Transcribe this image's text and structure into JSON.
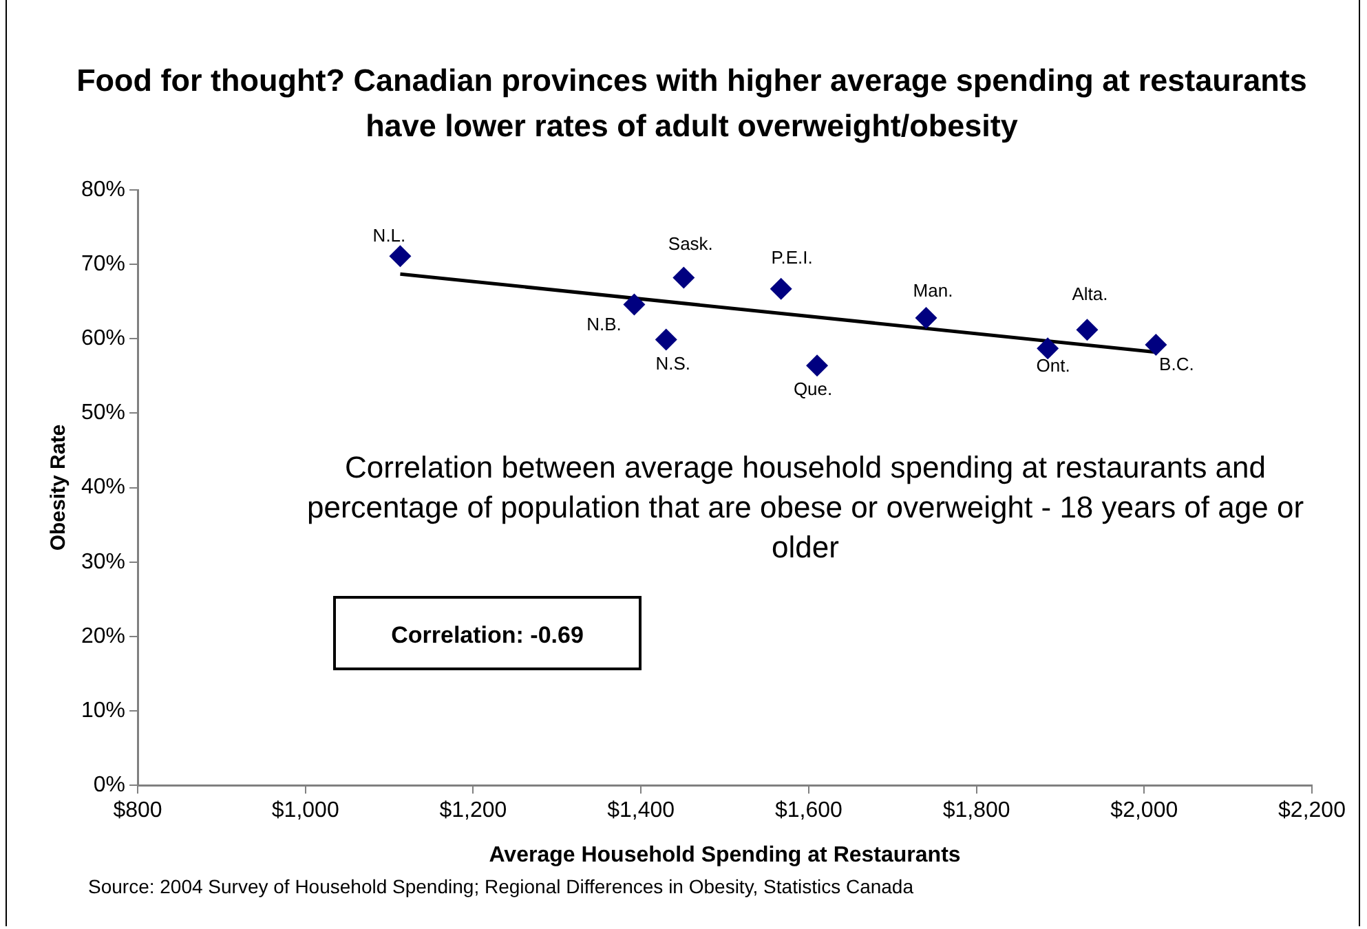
{
  "chart_data": {
    "type": "scatter",
    "title": "Food for thought?  Canadian provinces with higher average spending at restaurants have lower rates of adult overweight/obesity",
    "xlabel": "Average Household Spending at Restaurants",
    "ylabel": "Obesity Rate",
    "xlim": [
      800,
      2200
    ],
    "xticks": [
      {
        "value": 800,
        "label": "$800"
      },
      {
        "value": 1000,
        "label": "$1,000"
      },
      {
        "value": 1200,
        "label": "$1,200"
      },
      {
        "value": 1400,
        "label": "$1,400"
      },
      {
        "value": 1600,
        "label": "$1,600"
      },
      {
        "value": 1800,
        "label": "$1,800"
      },
      {
        "value": 2000,
        "label": "$2,000"
      },
      {
        "value": 2200,
        "label": "$2,200"
      }
    ],
    "ylim": [
      0,
      80
    ],
    "yticks": [
      {
        "value": 0,
        "label": "0%"
      },
      {
        "value": 10,
        "label": "10%"
      },
      {
        "value": 20,
        "label": "20%"
      },
      {
        "value": 30,
        "label": "30%"
      },
      {
        "value": 40,
        "label": "40%"
      },
      {
        "value": 50,
        "label": "50%"
      },
      {
        "value": 60,
        "label": "60%"
      },
      {
        "value": 70,
        "label": "70%"
      },
      {
        "value": 80,
        "label": "80%"
      }
    ],
    "grid": false,
    "legend": false,
    "marker": "diamond",
    "series": [
      {
        "type": "scatter",
        "color": "#000080",
        "x": [
          1113,
          1392,
          1430,
          1451,
          1567,
          1610,
          1740,
          1885,
          1932,
          2014
        ],
        "values": [
          71.1,
          64.6,
          59.9,
          68.2,
          66.7,
          56.4,
          62.8,
          58.7,
          61.2,
          59.2
        ],
        "value_labels": [
          "N.L.",
          "N.B.",
          "N.S.",
          "Sask.",
          "P.E.I.",
          "Que.",
          "Man.",
          "Ont.",
          "Alta.",
          "B.C."
        ]
      },
      {
        "type": "line",
        "color": "#000000",
        "marker": "none",
        "x": [
          1113,
          2014
        ],
        "values": [
          68.7,
          58.2
        ]
      }
    ],
    "annotations": [
      "Correlation between average household spending at restaurants and percentage of population that are obese or overweight - 18 years of age or older",
      "Correlation: -0.69",
      "Source:  2004 Survey of Household Spending; Regional Differences in Obesity, Statistics Canada"
    ]
  }
}
